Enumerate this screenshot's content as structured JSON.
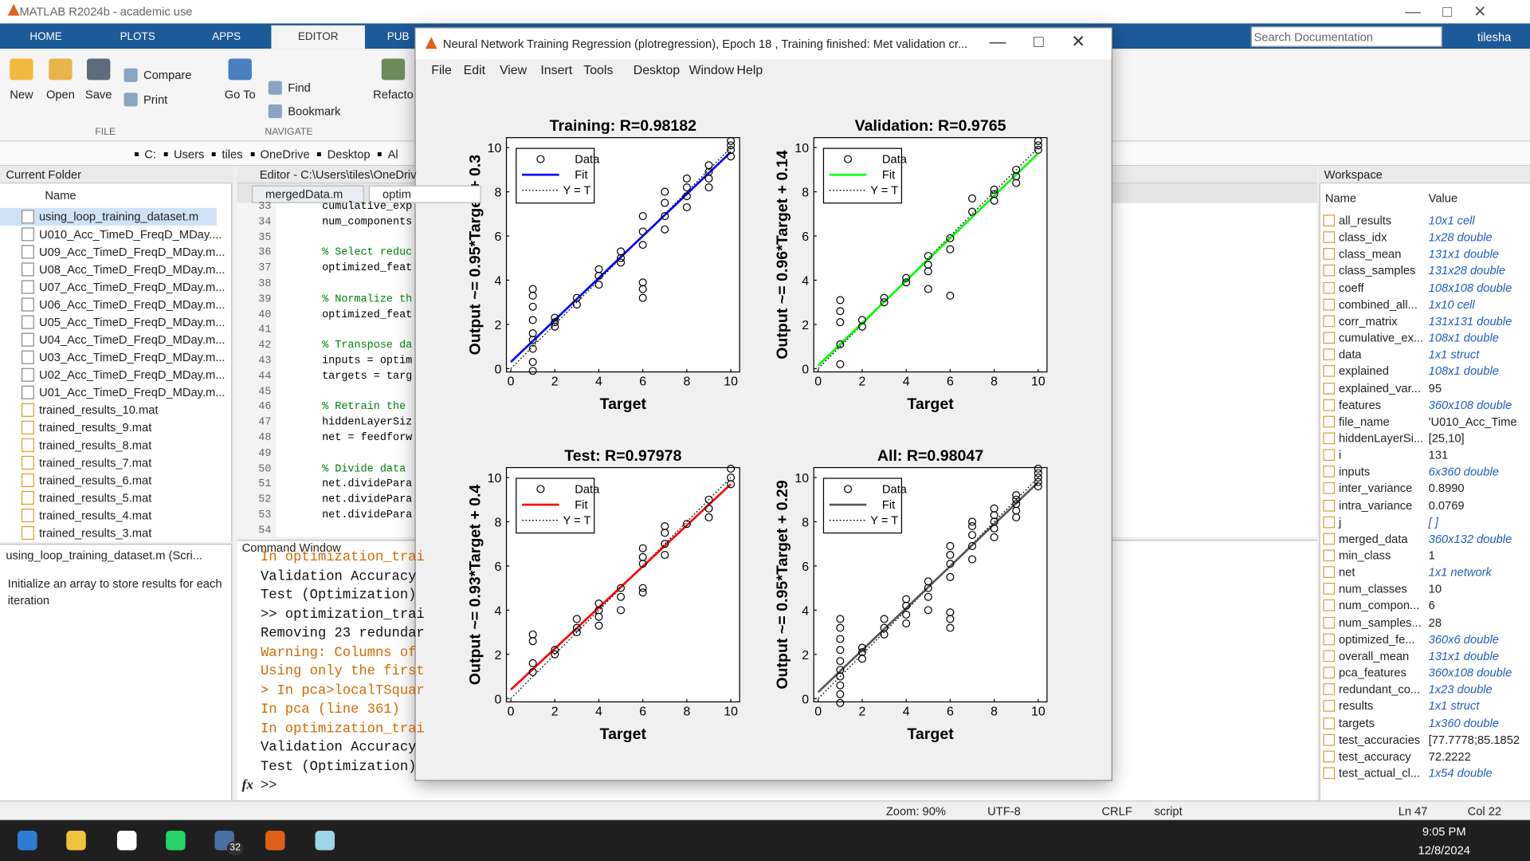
{
  "app_title": "MATLAB R2024b - academic use",
  "ribbon_tabs": [
    "HOME",
    "PLOTS",
    "APPS",
    "EDITOR",
    "PUB"
  ],
  "ribbon_buttons": [
    "New",
    "Open",
    "Save",
    "Compare",
    "Print",
    "Go To",
    "Find",
    "Bookmark",
    "Refacto"
  ],
  "ribbon_groups": [
    "FILE",
    "NAVIGATE"
  ],
  "search_placeholder": "Search Documentation",
  "user": "tilesha",
  "path": [
    "C:",
    "Users",
    "tiles",
    "OneDrive",
    "Desktop",
    "Al"
  ],
  "current_folder": {
    "title": "Current Folder",
    "column": "Name",
    "files": [
      "using_loop_training_dataset.m",
      "U010_Acc_TimeD_FreqD_MDay....",
      "U09_Acc_TimeD_FreqD_MDay.m...",
      "U08_Acc_TimeD_FreqD_MDay.m...",
      "U07_Acc_TimeD_FreqD_MDay.m...",
      "U06_Acc_TimeD_FreqD_MDay.m...",
      "U05_Acc_TimeD_FreqD_MDay.m...",
      "U04_Acc_TimeD_FreqD_MDay.m...",
      "U03_Acc_TimeD_FreqD_MDay.m...",
      "U02_Acc_TimeD_FreqD_MDay.m...",
      "U01_Acc_TimeD_FreqD_MDay.m...",
      "trained_results_10.mat",
      "trained_results_9.mat",
      "trained_results_8.mat",
      "trained_results_7.mat",
      "trained_results_6.mat",
      "trained_results_5.mat",
      "trained_results_4.mat",
      "trained_results_3.mat"
    ]
  },
  "details": {
    "file": "using_loop_training_dataset.m  (Scri...",
    "description": "Initialize an array to store results for each iteration"
  },
  "editor": {
    "title": "Editor - C:\\Users\\tiles\\OneDriv",
    "tabs": [
      "mergedData.m",
      "optim"
    ],
    "lines": [
      {
        "n": 33,
        "code": "cumulative_exp"
      },
      {
        "n": 34,
        "code": "num_components"
      },
      {
        "n": 35
      },
      {
        "n": 36,
        "code": "% Select reduc"
      },
      {
        "n": 37,
        "code": "optimized_feat"
      },
      {
        "n": 38
      },
      {
        "n": 39,
        "code": "% Normalize th"
      },
      {
        "n": 40,
        "code": "optimized_feat"
      },
      {
        "n": 41
      },
      {
        "n": 42,
        "code": "% Transpose da"
      },
      {
        "n": 43,
        "code": "inputs = optim"
      },
      {
        "n": 44,
        "code": "targets = targ"
      },
      {
        "n": 45
      },
      {
        "n": 46,
        "code": "% Retrain the "
      },
      {
        "n": 47,
        "code": "hiddenLayerSiz"
      },
      {
        "n": 48,
        "code": "net = feedforw"
      },
      {
        "n": 49
      },
      {
        "n": 50,
        "code": "% Divide data "
      },
      {
        "n": 51,
        "code": "net.dividePara"
      },
      {
        "n": 52,
        "code": "net.dividePara"
      },
      {
        "n": 53,
        "code": "net.dividePara"
      },
      {
        "n": 54
      }
    ]
  },
  "command_window": {
    "title": "Command Window",
    "prompt": ">>",
    "fx": "fx",
    "lines": [
      {
        "text": "In optimization_trai",
        "style": "warning"
      },
      {
        "text": "Validation Accuracy",
        "style": "normal"
      },
      {
        "text": "Test (Optimization)",
        "style": "normal"
      },
      {
        "text": ">> optimization_trai",
        "style": "normal"
      },
      {
        "text": "Removing 23 redundar",
        "style": "normal"
      },
      {
        "text": "Warning: Columns of",
        "style": "warning"
      },
      {
        "text": "Using only the first",
        "style": "warning"
      },
      {
        "text": "> In pca>localTSquar",
        "style": "warning"
      },
      {
        "text": "In pca (line 361)",
        "style": "warning"
      },
      {
        "text": "In optimization_trai",
        "style": "warning"
      },
      {
        "text": "Validation Accuracy",
        "style": "normal"
      },
      {
        "text": "Test (Optimization)",
        "style": "normal"
      }
    ]
  },
  "workspace": {
    "title": "Workspace",
    "columns": [
      "Name",
      "Value"
    ],
    "rows": [
      [
        "all_results",
        "10x1 cell"
      ],
      [
        "class_idx",
        "1x28 double"
      ],
      [
        "class_mean",
        "131x1 double"
      ],
      [
        "class_samples",
        "131x28 double"
      ],
      [
        "coeff",
        "108x108 double"
      ],
      [
        "combined_all...",
        "1x10 cell"
      ],
      [
        "corr_matrix",
        "131x131 double"
      ],
      [
        "cumulative_ex...",
        "108x1 double"
      ],
      [
        "data",
        "1x1 struct"
      ],
      [
        "explained",
        "108x1 double"
      ],
      [
        "explained_var...",
        "95"
      ],
      [
        "features",
        "360x108 double"
      ],
      [
        "file_name",
        "'U010_Acc_Time"
      ],
      [
        "hiddenLayerSi...",
        "[25,10]"
      ],
      [
        "i",
        "131"
      ],
      [
        "inputs",
        "6x360 double"
      ],
      [
        "inter_variance",
        "0.8990"
      ],
      [
        "intra_variance",
        "0.0769"
      ],
      [
        "j",
        "[ ]"
      ],
      [
        "merged_data",
        "360x132 double"
      ],
      [
        "min_class",
        "1"
      ],
      [
        "net",
        "1x1 network"
      ],
      [
        "num_classes",
        "10"
      ],
      [
        "num_compon...",
        "6"
      ],
      [
        "num_samples...",
        "28"
      ],
      [
        "optimized_fe...",
        "360x6 double"
      ],
      [
        "overall_mean",
        "131x1 double"
      ],
      [
        "pca_features",
        "360x108 double"
      ],
      [
        "redundant_co...",
        "1x23 double"
      ],
      [
        "results",
        "1x1 struct"
      ],
      [
        "targets",
        "1x360 double"
      ],
      [
        "test_accuracies",
        "[77.7778;85.1852"
      ],
      [
        "test_accuracy",
        "72.2222"
      ],
      [
        "test_actual_cl...",
        "1x54 double"
      ]
    ]
  },
  "status_bar": [
    "Zoom: 90%",
    "UTF-8",
    "CRLF",
    "script",
    "Ln  47",
    "Col  22"
  ],
  "taskbar": {
    "badge": "32",
    "time": "9:05 PM",
    "date": "12/8/2024"
  },
  "figure": {
    "title": "Neural Network Training Regression (plotregression), Epoch 18 , Training finished: Met validation cr...",
    "menu": [
      "File",
      "Edit",
      "View",
      "Insert",
      "Tools",
      "Desktop",
      "Window",
      "Help"
    ]
  },
  "chart_data": [
    {
      "type": "scatter",
      "title": "Training: R=0.98182",
      "xlabel": "Target",
      "ylabel": "Output ~= 0.95*Target + 0.3",
      "xlim": [
        -0.2,
        10.4
      ],
      "ylim": [
        -0.15,
        10.45
      ],
      "xticks": [
        0,
        2,
        4,
        6,
        8,
        10
      ],
      "yticks": [
        0,
        2,
        4,
        6,
        8,
        10
      ],
      "legend": "upper left",
      "series": [
        {
          "name": "Data",
          "type": "scatter",
          "color": "#000000",
          "x": [
            1,
            1,
            1,
            1,
            1,
            1,
            1,
            1,
            1,
            2,
            2,
            2,
            3,
            3,
            4,
            4,
            4,
            5,
            5,
            5,
            6,
            6,
            6,
            6,
            6,
            6,
            7,
            7,
            7,
            7,
            8,
            8,
            8,
            8,
            9,
            9,
            9,
            9,
            10,
            10,
            10,
            10
          ],
          "values": [
            -0.1,
            0.3,
            0.9,
            1.3,
            1.6,
            2.2,
            2.8,
            3.3,
            3.6,
            1.9,
            2.1,
            2.3,
            2.9,
            3.2,
            3.8,
            4.2,
            4.5,
            4.8,
            5.0,
            5.3,
            3.2,
            3.6,
            3.9,
            5.6,
            6.2,
            6.9,
            6.3,
            6.9,
            7.5,
            8.0,
            7.3,
            7.8,
            8.2,
            8.6,
            8.2,
            8.6,
            8.9,
            9.2,
            9.6,
            9.9,
            10.1,
            10.3
          ]
        },
        {
          "name": "Fit",
          "type": "line",
          "color": "#0000ff",
          "x": [
            0,
            10
          ],
          "values": [
            0.3,
            9.8
          ]
        },
        {
          "name": "Y = T",
          "type": "line",
          "dash": true,
          "color": "#000000",
          "x": [
            0,
            10
          ],
          "values": [
            0,
            10
          ]
        }
      ]
    },
    {
      "type": "scatter",
      "title": "Validation: R=0.9765",
      "xlabel": "Target",
      "ylabel": "Output ~= 0.96*Target + 0.14",
      "xlim": [
        -0.2,
        10.4
      ],
      "ylim": [
        -0.15,
        10.45
      ],
      "xticks": [
        0,
        2,
        4,
        6,
        8,
        10
      ],
      "yticks": [
        0,
        2,
        4,
        6,
        8,
        10
      ],
      "legend": "upper left",
      "series": [
        {
          "name": "Data",
          "type": "scatter",
          "color": "#000000",
          "x": [
            1,
            1,
            1,
            1,
            1,
            2,
            2,
            3,
            3,
            4,
            4,
            5,
            5,
            5,
            5,
            6,
            6,
            6,
            7,
            7,
            8,
            8,
            8,
            9,
            9,
            9,
            10,
            10,
            10
          ],
          "values": [
            0.2,
            1.1,
            2.1,
            2.6,
            3.1,
            1.9,
            2.2,
            3.0,
            3.2,
            3.9,
            4.1,
            3.6,
            4.4,
            4.7,
            5.1,
            3.3,
            5.4,
            5.9,
            7.1,
            7.7,
            7.6,
            7.9,
            8.1,
            8.4,
            8.7,
            9.0,
            9.9,
            10.1,
            10.3
          ]
        },
        {
          "name": "Fit",
          "type": "line",
          "color": "#00ff00",
          "x": [
            0,
            10
          ],
          "values": [
            0.14,
            9.74
          ]
        },
        {
          "name": "Y = T",
          "type": "line",
          "dash": true,
          "color": "#000000",
          "x": [
            0,
            10
          ],
          "values": [
            0,
            10
          ]
        }
      ]
    },
    {
      "type": "scatter",
      "title": "Test: R=0.97978",
      "xlabel": "Target",
      "ylabel": "Output ~= 0.93*Target + 0.4",
      "xlim": [
        -0.2,
        10.4
      ],
      "ylim": [
        -0.15,
        10.45
      ],
      "xticks": [
        0,
        2,
        4,
        6,
        8,
        10
      ],
      "yticks": [
        0,
        2,
        4,
        6,
        8,
        10
      ],
      "legend": "upper left",
      "series": [
        {
          "name": "Data",
          "type": "scatter",
          "color": "#000000",
          "x": [
            1,
            1,
            1,
            1,
            2,
            2,
            3,
            3,
            3,
            4,
            4,
            4,
            4,
            5,
            5,
            5,
            6,
            6,
            6,
            6,
            6,
            7,
            7,
            7,
            7,
            8,
            9,
            9,
            9,
            10,
            10,
            10
          ],
          "values": [
            1.2,
            1.6,
            2.6,
            2.9,
            2.0,
            2.2,
            3.0,
            3.2,
            3.6,
            3.3,
            3.7,
            4.0,
            4.3,
            4.0,
            4.6,
            5.0,
            4.8,
            5.0,
            6.1,
            6.4,
            6.8,
            6.5,
            7.0,
            7.5,
            7.8,
            7.9,
            8.2,
            8.6,
            9.0,
            9.7,
            10.0,
            10.4
          ]
        },
        {
          "name": "Fit",
          "type": "line",
          "color": "#ff0000",
          "x": [
            0,
            10
          ],
          "values": [
            0.4,
            9.7
          ]
        },
        {
          "name": "Y = T",
          "type": "line",
          "dash": true,
          "color": "#000000",
          "x": [
            0,
            10
          ],
          "values": [
            0,
            10
          ]
        }
      ]
    },
    {
      "type": "scatter",
      "title": "All: R=0.98047",
      "xlabel": "Target",
      "ylabel": "Output ~= 0.95*Target + 0.29",
      "xlim": [
        -0.2,
        10.4
      ],
      "ylim": [
        -0.15,
        10.45
      ],
      "xticks": [
        0,
        2,
        4,
        6,
        8,
        10
      ],
      "yticks": [
        0,
        2,
        4,
        6,
        8,
        10
      ],
      "legend": "upper left",
      "series": [
        {
          "name": "Data",
          "type": "scatter",
          "color": "#000000",
          "x": [
            1,
            1,
            1,
            1,
            1,
            1,
            1,
            1,
            1,
            1,
            2,
            2,
            2,
            3,
            3,
            3,
            4,
            4,
            4,
            4,
            5,
            5,
            5,
            5,
            6,
            6,
            6,
            6,
            6,
            6,
            6,
            7,
            7,
            7,
            7,
            7,
            8,
            8,
            8,
            8,
            8,
            9,
            9,
            9,
            9,
            9,
            10,
            10,
            10,
            10,
            10
          ],
          "values": [
            -0.2,
            0.2,
            0.6,
            1.0,
            1.3,
            1.7,
            2.2,
            2.7,
            3.2,
            3.6,
            1.8,
            2.1,
            2.3,
            2.9,
            3.2,
            3.6,
            3.4,
            3.8,
            4.2,
            4.5,
            4.0,
            4.6,
            5.0,
            5.3,
            3.2,
            3.6,
            3.9,
            5.5,
            6.1,
            6.5,
            6.9,
            6.3,
            6.9,
            7.4,
            7.8,
            8.0,
            7.3,
            7.7,
            8.0,
            8.3,
            8.6,
            8.2,
            8.5,
            8.8,
            9.0,
            9.2,
            9.6,
            9.8,
            10.0,
            10.2,
            10.4
          ]
        },
        {
          "name": "Fit",
          "type": "line",
          "color": "#555555",
          "x": [
            0,
            10
          ],
          "values": [
            0.29,
            9.79
          ]
        },
        {
          "name": "Y = T",
          "type": "line",
          "dash": true,
          "color": "#000000",
          "x": [
            0,
            10
          ],
          "values": [
            0,
            10
          ]
        }
      ]
    }
  ]
}
